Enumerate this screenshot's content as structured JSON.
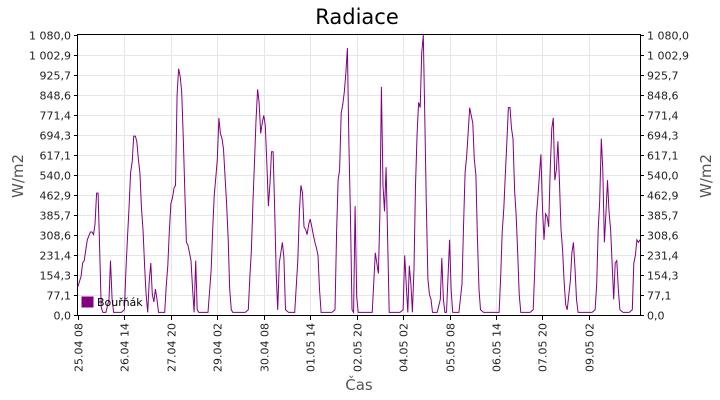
{
  "chart_data": {
    "type": "line",
    "title": "Radiace",
    "xlabel": "Čas",
    "ylabel_left": "W/m2",
    "ylabel_right": "W/m2",
    "ylim": [
      0,
      1080
    ],
    "yticks": [
      "0,0",
      "77,1",
      "154,3",
      "231,4",
      "308,6",
      "385,7",
      "462,9",
      "540,0",
      "617,1",
      "694,3",
      "771,4",
      "848,6",
      "925,7",
      "1 002,9",
      "1 080,0"
    ],
    "xticks": [
      "25.04 08",
      "26.04 14",
      "27.04 20",
      "29.04 02",
      "30.04 08",
      "01.05 14",
      "02.05 20",
      "04.05 02",
      "05.05 08",
      "06.05 14",
      "07.05 20",
      "09.05 02"
    ],
    "xrange_hours": [
      0,
      363
    ],
    "grid": true,
    "legend": {
      "position": "bottom-left",
      "entries": [
        "Bouřňák"
      ]
    },
    "series": [
      {
        "name": "Bouřňák",
        "color": "#800080",
        "points": [
          [
            0,
            110
          ],
          [
            2,
            150
          ],
          [
            3,
            200
          ],
          [
            4,
            210
          ],
          [
            6,
            290
          ],
          [
            8,
            320
          ],
          [
            9,
            320
          ],
          [
            10,
            310
          ],
          [
            11,
            350
          ],
          [
            12,
            470
          ],
          [
            13,
            470
          ],
          [
            14,
            250
          ],
          [
            15,
            30
          ],
          [
            16,
            10
          ],
          [
            18,
            10
          ],
          [
            20,
            60
          ],
          [
            21,
            210
          ],
          [
            22,
            60
          ],
          [
            23,
            10
          ],
          [
            26,
            10
          ],
          [
            28,
            10
          ],
          [
            30,
            20
          ],
          [
            31,
            180
          ],
          [
            32,
            300
          ],
          [
            33,
            420
          ],
          [
            34,
            550
          ],
          [
            35,
            590
          ],
          [
            36,
            690
          ],
          [
            37,
            690
          ],
          [
            38,
            670
          ],
          [
            39,
            600
          ],
          [
            40,
            550
          ],
          [
            41,
            410
          ],
          [
            42,
            330
          ],
          [
            43,
            190
          ],
          [
            44,
            80
          ],
          [
            45,
            10
          ],
          [
            46,
            130
          ],
          [
            47,
            200
          ],
          [
            48,
            80
          ],
          [
            49,
            50
          ],
          [
            50,
            100
          ],
          [
            51,
            60
          ],
          [
            52,
            10
          ],
          [
            54,
            10
          ],
          [
            56,
            10
          ],
          [
            57,
            110
          ],
          [
            58,
            190
          ],
          [
            59,
            320
          ],
          [
            60,
            430
          ],
          [
            61,
            450
          ],
          [
            62,
            490
          ],
          [
            63,
            500
          ],
          [
            64,
            850
          ],
          [
            65,
            950
          ],
          [
            66,
            920
          ],
          [
            67,
            860
          ],
          [
            68,
            680
          ],
          [
            69,
            480
          ],
          [
            70,
            280
          ],
          [
            71,
            270
          ],
          [
            72,
            240
          ],
          [
            73,
            210
          ],
          [
            74,
            100
          ],
          [
            75,
            10
          ],
          [
            76,
            210
          ],
          [
            77,
            20
          ],
          [
            78,
            10
          ],
          [
            80,
            10
          ],
          [
            82,
            10
          ],
          [
            84,
            10
          ],
          [
            86,
            170
          ],
          [
            87,
            330
          ],
          [
            88,
            460
          ],
          [
            89,
            530
          ],
          [
            90,
            600
          ],
          [
            91,
            760
          ],
          [
            92,
            700
          ],
          [
            93,
            680
          ],
          [
            94,
            640
          ],
          [
            95,
            530
          ],
          [
            96,
            430
          ],
          [
            97,
            290
          ],
          [
            98,
            100
          ],
          [
            99,
            20
          ],
          [
            100,
            10
          ],
          [
            102,
            10
          ],
          [
            104,
            10
          ],
          [
            106,
            10
          ],
          [
            108,
            10
          ],
          [
            110,
            20
          ],
          [
            111,
            150
          ],
          [
            112,
            250
          ],
          [
            113,
            430
          ],
          [
            114,
            590
          ],
          [
            115,
            750
          ],
          [
            116,
            870
          ],
          [
            117,
            820
          ],
          [
            118,
            700
          ],
          [
            119,
            740
          ],
          [
            120,
            770
          ],
          [
            121,
            730
          ],
          [
            122,
            580
          ],
          [
            123,
            420
          ],
          [
            124,
            510
          ],
          [
            125,
            630
          ],
          [
            126,
            630
          ],
          [
            127,
            420
          ],
          [
            128,
            160
          ],
          [
            129,
            20
          ],
          [
            130,
            200
          ],
          [
            131,
            240
          ],
          [
            132,
            280
          ],
          [
            133,
            220
          ],
          [
            134,
            20
          ],
          [
            136,
            10
          ],
          [
            138,
            10
          ],
          [
            140,
            10
          ],
          [
            142,
            210
          ],
          [
            143,
            400
          ],
          [
            144,
            500
          ],
          [
            145,
            470
          ],
          [
            146,
            340
          ],
          [
            147,
            330
          ],
          [
            148,
            310
          ],
          [
            149,
            350
          ],
          [
            150,
            370
          ],
          [
            151,
            340
          ],
          [
            152,
            310
          ],
          [
            153,
            280
          ],
          [
            154,
            260
          ],
          [
            155,
            230
          ],
          [
            156,
            100
          ],
          [
            157,
            10
          ],
          [
            158,
            10
          ],
          [
            160,
            10
          ],
          [
            162,
            10
          ],
          [
            164,
            10
          ],
          [
            166,
            20
          ],
          [
            167,
            320
          ],
          [
            168,
            520
          ],
          [
            169,
            560
          ],
          [
            170,
            780
          ],
          [
            171,
            810
          ],
          [
            172,
            860
          ],
          [
            173,
            930
          ],
          [
            174,
            1030
          ],
          [
            175,
            660
          ],
          [
            176,
            370
          ],
          [
            177,
            20
          ],
          [
            178,
            10
          ],
          [
            179,
            420
          ],
          [
            180,
            70
          ],
          [
            181,
            10
          ],
          [
            182,
            10
          ],
          [
            184,
            10
          ],
          [
            186,
            10
          ],
          [
            188,
            10
          ],
          [
            190,
            10
          ],
          [
            192,
            240
          ],
          [
            193,
            200
          ],
          [
            194,
            160
          ],
          [
            195,
            390
          ],
          [
            196,
            880
          ],
          [
            197,
            500
          ],
          [
            198,
            400
          ],
          [
            199,
            570
          ],
          [
            200,
            300
          ],
          [
            201,
            10
          ],
          [
            202,
            10
          ],
          [
            204,
            10
          ],
          [
            206,
            10
          ],
          [
            208,
            10
          ],
          [
            210,
            20
          ],
          [
            211,
            230
          ],
          [
            212,
            120
          ],
          [
            213,
            10
          ],
          [
            214,
            190
          ],
          [
            215,
            120
          ],
          [
            216,
            10
          ],
          [
            217,
            180
          ],
          [
            218,
            500
          ],
          [
            219,
            700
          ],
          [
            220,
            820
          ],
          [
            221,
            800
          ],
          [
            222,
            1010
          ],
          [
            223,
            1080
          ],
          [
            224,
            760
          ],
          [
            225,
            430
          ],
          [
            226,
            140
          ],
          [
            227,
            80
          ],
          [
            228,
            60
          ],
          [
            229,
            10
          ],
          [
            230,
            10
          ],
          [
            232,
            10
          ],
          [
            234,
            60
          ],
          [
            235,
            220
          ],
          [
            236,
            60
          ],
          [
            237,
            10
          ],
          [
            238,
            10
          ],
          [
            240,
            290
          ],
          [
            241,
            100
          ],
          [
            242,
            10
          ],
          [
            244,
            10
          ],
          [
            246,
            10
          ],
          [
            248,
            120
          ],
          [
            249,
            340
          ],
          [
            250,
            550
          ],
          [
            251,
            610
          ],
          [
            252,
            700
          ],
          [
            253,
            800
          ],
          [
            254,
            770
          ],
          [
            255,
            740
          ],
          [
            256,
            600
          ],
          [
            257,
            540
          ],
          [
            258,
            300
          ],
          [
            259,
            100
          ],
          [
            260,
            20
          ],
          [
            262,
            10
          ],
          [
            264,
            10
          ],
          [
            266,
            10
          ],
          [
            268,
            10
          ],
          [
            270,
            10
          ],
          [
            272,
            10
          ],
          [
            273,
            150
          ],
          [
            274,
            320
          ],
          [
            275,
            410
          ],
          [
            276,
            540
          ],
          [
            277,
            670
          ],
          [
            278,
            800
          ],
          [
            279,
            800
          ],
          [
            280,
            720
          ],
          [
            281,
            680
          ],
          [
            282,
            480
          ],
          [
            283,
            390
          ],
          [
            284,
            240
          ],
          [
            285,
            80
          ],
          [
            286,
            10
          ],
          [
            288,
            10
          ],
          [
            290,
            10
          ],
          [
            292,
            10
          ],
          [
            294,
            20
          ],
          [
            295,
            170
          ],
          [
            296,
            380
          ],
          [
            297,
            450
          ],
          [
            298,
            540
          ],
          [
            299,
            620
          ],
          [
            300,
            410
          ],
          [
            301,
            290
          ],
          [
            302,
            390
          ],
          [
            303,
            380
          ],
          [
            304,
            340
          ],
          [
            305,
            560
          ],
          [
            306,
            720
          ],
          [
            307,
            760
          ],
          [
            308,
            520
          ],
          [
            309,
            560
          ],
          [
            310,
            670
          ],
          [
            311,
            510
          ],
          [
            312,
            330
          ],
          [
            313,
            250
          ],
          [
            314,
            130
          ],
          [
            315,
            40
          ],
          [
            316,
            20
          ],
          [
            318,
            130
          ],
          [
            319,
            240
          ],
          [
            320,
            280
          ],
          [
            321,
            180
          ],
          [
            322,
            60
          ],
          [
            323,
            10
          ],
          [
            324,
            10
          ],
          [
            326,
            10
          ],
          [
            328,
            10
          ],
          [
            330,
            10
          ],
          [
            332,
            10
          ],
          [
            334,
            20
          ],
          [
            335,
            120
          ],
          [
            336,
            330
          ],
          [
            337,
            440
          ],
          [
            338,
            680
          ],
          [
            339,
            560
          ],
          [
            340,
            280
          ],
          [
            341,
            390
          ],
          [
            342,
            520
          ],
          [
            343,
            400
          ],
          [
            344,
            330
          ],
          [
            345,
            200
          ],
          [
            346,
            60
          ],
          [
            347,
            200
          ],
          [
            348,
            210
          ],
          [
            349,
            100
          ],
          [
            350,
            20
          ],
          [
            352,
            10
          ],
          [
            354,
            10
          ],
          [
            356,
            10
          ],
          [
            358,
            20
          ],
          [
            359,
            200
          ],
          [
            360,
            230
          ],
          [
            361,
            290
          ],
          [
            362,
            280
          ],
          [
            363,
            290
          ]
        ]
      }
    ]
  }
}
